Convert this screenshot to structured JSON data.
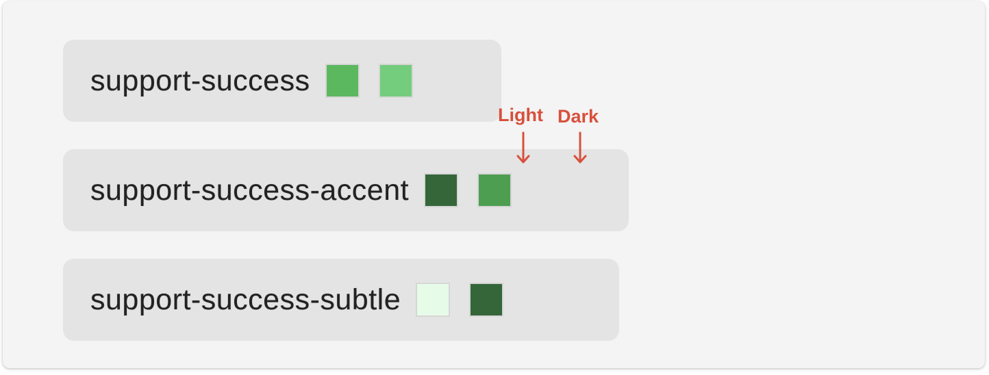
{
  "tokens": [
    {
      "name": "support-success",
      "light": "#5cb85f",
      "dark": "#74cc7d"
    },
    {
      "name": "support-success-accent",
      "light": "#34663a",
      "dark": "#4e9e52"
    },
    {
      "name": "support-success-subtle",
      "light": "#e6fbe8",
      "dark": "#34663a"
    }
  ],
  "annotations": {
    "light_label": "Light",
    "dark_label": "Dark",
    "color": "#d8503c"
  }
}
